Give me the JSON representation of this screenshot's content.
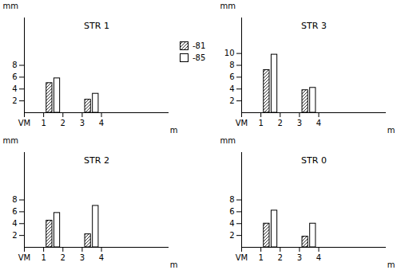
{
  "chart_data": [
    {
      "type": "bar",
      "title": "STR 1",
      "xlabel": "m",
      "ylabel": "mm",
      "x": [
        1.5,
        3.5
      ],
      "series": [
        {
          "name": "-81",
          "color": "#333333",
          "values": [
            5,
            2.2
          ]
        },
        {
          "name": "-85",
          "color": "#ffffff",
          "values": [
            5.8,
            3.2
          ]
        }
      ],
      "xlim": [
        0,
        7.5
      ],
      "xticks": [
        {
          "value": 0,
          "label": "VM"
        },
        1,
        2,
        3,
        4
      ],
      "ylim": [
        0,
        16
      ],
      "yticks": [
        2,
        4,
        6,
        8
      ]
    },
    {
      "type": "bar",
      "title": "STR 3",
      "xlabel": "m",
      "ylabel": "mm",
      "x": [
        1.5,
        3.5
      ],
      "series": [
        {
          "name": "-81",
          "color": "#333333",
          "values": [
            7.2,
            3.8
          ]
        },
        {
          "name": "-85",
          "color": "#ffffff",
          "values": [
            9.8,
            4.2
          ]
        }
      ],
      "xlim": [
        0,
        7.5
      ],
      "xticks": [
        {
          "value": 0,
          "label": "VM"
        },
        1,
        2,
        3,
        4
      ],
      "ylim": [
        0,
        16
      ],
      "yticks": [
        2,
        4,
        6,
        8,
        10
      ]
    },
    {
      "type": "bar",
      "title": "STR 2",
      "xlabel": "m",
      "ylabel": "mm",
      "x": [
        1.5,
        3.5
      ],
      "series": [
        {
          "name": "-81",
          "color": "#333333",
          "values": [
            4.5,
            2.2
          ]
        },
        {
          "name": "-85",
          "color": "#ffffff",
          "values": [
            5.8,
            7
          ]
        }
      ],
      "xlim": [
        0,
        7.5
      ],
      "xticks": [
        {
          "value": 0,
          "label": "VM"
        },
        1,
        2,
        3,
        4
      ],
      "ylim": [
        0,
        16
      ],
      "yticks": [
        2,
        4,
        6,
        8
      ]
    },
    {
      "type": "bar",
      "title": "STR 0",
      "xlabel": "m",
      "ylabel": "mm",
      "x": [
        1.5,
        3.5
      ],
      "series": [
        {
          "name": "-81",
          "color": "#333333",
          "values": [
            4,
            1.8
          ]
        },
        {
          "name": "-85",
          "color": "#ffffff",
          "values": [
            6.2,
            4
          ]
        }
      ],
      "xlim": [
        0,
        7.5
      ],
      "xticks": [
        {
          "value": 0,
          "label": "VM"
        },
        1,
        2,
        3,
        4
      ],
      "ylim": [
        0,
        16
      ],
      "yticks": [
        2,
        4,
        6,
        8
      ]
    }
  ]
}
